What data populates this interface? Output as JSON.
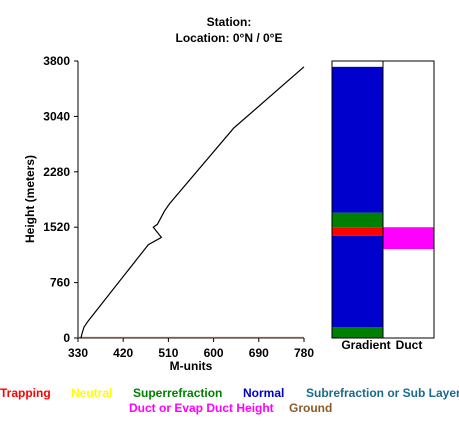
{
  "header": {
    "station": "Station:",
    "location": "Location:   0°N /   0°E"
  },
  "chart_data": {
    "type": "line",
    "xlabel": "M-units",
    "ylabel": "Height (meters)",
    "xlim": [
      330,
      780
    ],
    "ylim": [
      0,
      3800
    ],
    "x_ticks": [
      "330",
      "420",
      "510",
      "600",
      "690",
      "780"
    ],
    "y_ticks": [
      "0",
      "760",
      "1520",
      "2280",
      "3040",
      "3800"
    ],
    "series": [
      {
        "color": "#000000",
        "points": [
          [
            336,
            0
          ],
          [
            338,
            60
          ],
          [
            342,
            150
          ],
          [
            350,
            230
          ],
          [
            470,
            1280
          ],
          [
            496,
            1380
          ],
          [
            480,
            1520
          ],
          [
            488,
            1560
          ],
          [
            502,
            1740
          ],
          [
            512,
            1840
          ],
          [
            640,
            2880
          ],
          [
            780,
            3720
          ]
        ]
      }
    ],
    "ground_line": {
      "y": 0,
      "color": "#8B5A2B"
    },
    "columns": {
      "gradient_label": "Gradient",
      "duct_label": "Duct",
      "gradient_bands": [
        {
          "from": 0,
          "to": 150,
          "class": "Superrefraction"
        },
        {
          "from": 150,
          "to": 1400,
          "class": "Normal"
        },
        {
          "from": 1400,
          "to": 1520,
          "class": "Trapping"
        },
        {
          "from": 1520,
          "to": 1720,
          "class": "Superrefraction"
        },
        {
          "from": 1720,
          "to": 3720,
          "class": "Normal"
        }
      ],
      "duct_bands": [
        {
          "from": 1220,
          "to": 1520,
          "class": "Duct or Evap Duct Height"
        }
      ]
    },
    "legend": [
      {
        "label": "Trapping",
        "color": "#ff0000"
      },
      {
        "label": "Neutral",
        "color": "#ffff00"
      },
      {
        "label": "Superrefraction",
        "color": "#008000"
      },
      {
        "label": "Normal",
        "color": "#0000cc"
      },
      {
        "label": "Subrefraction or Sub Layer",
        "color": "#1a6a8a"
      },
      {
        "label": "Duct or Evap Duct Height",
        "color": "#ff00ff"
      },
      {
        "label": "Ground",
        "color": "#8B5A2B"
      }
    ]
  }
}
